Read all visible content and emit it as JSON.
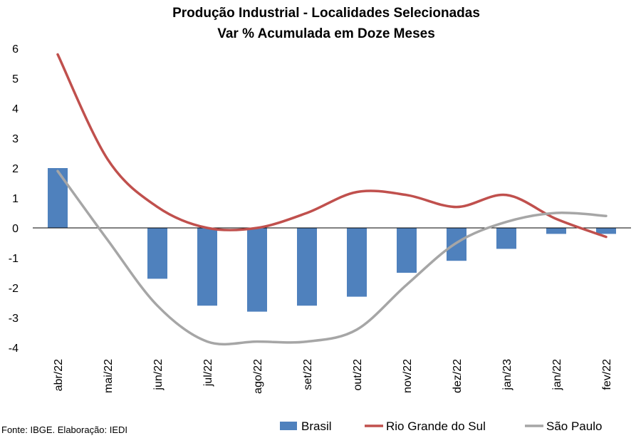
{
  "chart_data": {
    "type": "bar",
    "title_lines": [
      "Produção Industrial - Localidades Selecionadas",
      "Var % Acumulada em Doze Meses"
    ],
    "categories": [
      "abr/22",
      "mai/22",
      "jun/22",
      "jul/22",
      "ago/22",
      "set/22",
      "out/22",
      "nov/22",
      "dez/22",
      "jan/23",
      "jan/22",
      "fev/22"
    ],
    "ylim": [
      -4,
      6
    ],
    "yticks": [
      "6",
      "5",
      "4",
      "3",
      "2",
      "1",
      "0",
      "-1",
      "-2",
      "-3",
      "-4"
    ],
    "series": [
      {
        "name": "Brasil",
        "kind": "bar",
        "color": "#4F81BD",
        "values": [
          2.0,
          0.0,
          -1.7,
          -2.6,
          -2.8,
          -2.6,
          -2.3,
          -1.5,
          -1.1,
          -0.7,
          -0.2,
          -0.2
        ]
      },
      {
        "name": "Rio Grande do Sul",
        "kind": "line",
        "color": "#C0504D",
        "values": [
          5.8,
          2.3,
          0.7,
          0.0,
          0.0,
          0.5,
          1.2,
          1.1,
          0.7,
          1.1,
          0.3,
          -0.3
        ]
      },
      {
        "name": "São Paulo",
        "kind": "line",
        "color": "#A6A6A6",
        "values": [
          1.9,
          -0.4,
          -2.6,
          -3.8,
          -3.8,
          -3.8,
          -3.4,
          -1.9,
          -0.5,
          0.2,
          0.5,
          0.4
        ]
      }
    ],
    "legend_position": "bottom",
    "grid": false
  },
  "source_text": "Fonte: IBGE. Elaboração: IEDI"
}
